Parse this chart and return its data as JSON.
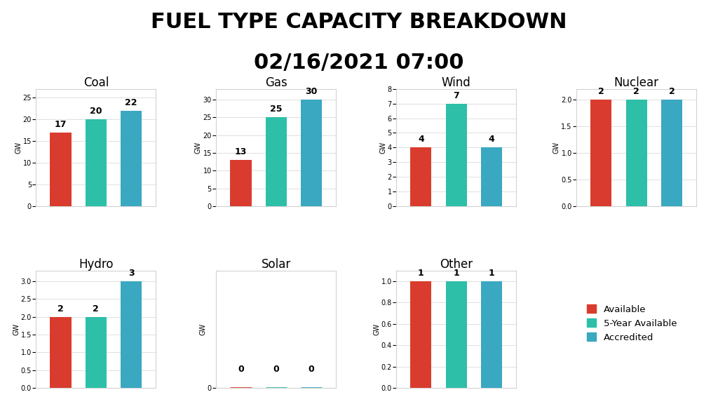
{
  "title_line1": "FUEL TYPE CAPACITY BREAKDOWN",
  "title_line2": "02/16/2021 07:00",
  "subplots": [
    {
      "name": "Coal",
      "values": [
        17,
        20,
        22
      ],
      "ylim": [
        0,
        27
      ]
    },
    {
      "name": "Gas",
      "values": [
        13,
        25,
        30
      ],
      "ylim": [
        0,
        33
      ]
    },
    {
      "name": "Wind",
      "values": [
        4,
        7,
        4
      ],
      "ylim": [
        0,
        8
      ]
    },
    {
      "name": "Nuclear",
      "values": [
        2,
        2,
        2
      ],
      "ylim": [
        0,
        2.2
      ]
    },
    {
      "name": "Hydro",
      "values": [
        2,
        2,
        3
      ],
      "ylim": [
        0,
        3.3
      ]
    },
    {
      "name": "Solar",
      "values": [
        0,
        0,
        0
      ],
      "ylim": [
        0,
        0.5
      ]
    },
    {
      "name": "Other",
      "values": [
        1,
        1,
        1
      ],
      "ylim": [
        0,
        1.1
      ]
    }
  ],
  "colors": [
    "#d93c2e",
    "#2dbfa8",
    "#3aa8c1"
  ],
  "bar_labels": [
    "Available",
    "5-Year Available",
    "Accredited"
  ],
  "ylabel": "GW",
  "background_color": "#ffffff",
  "title_fontsize": 22,
  "subplot_title_fontsize": 12,
  "bar_width": 0.6,
  "label_fontsize": 9,
  "ylabel_fontsize": 7,
  "ytick_fontsize": 7
}
